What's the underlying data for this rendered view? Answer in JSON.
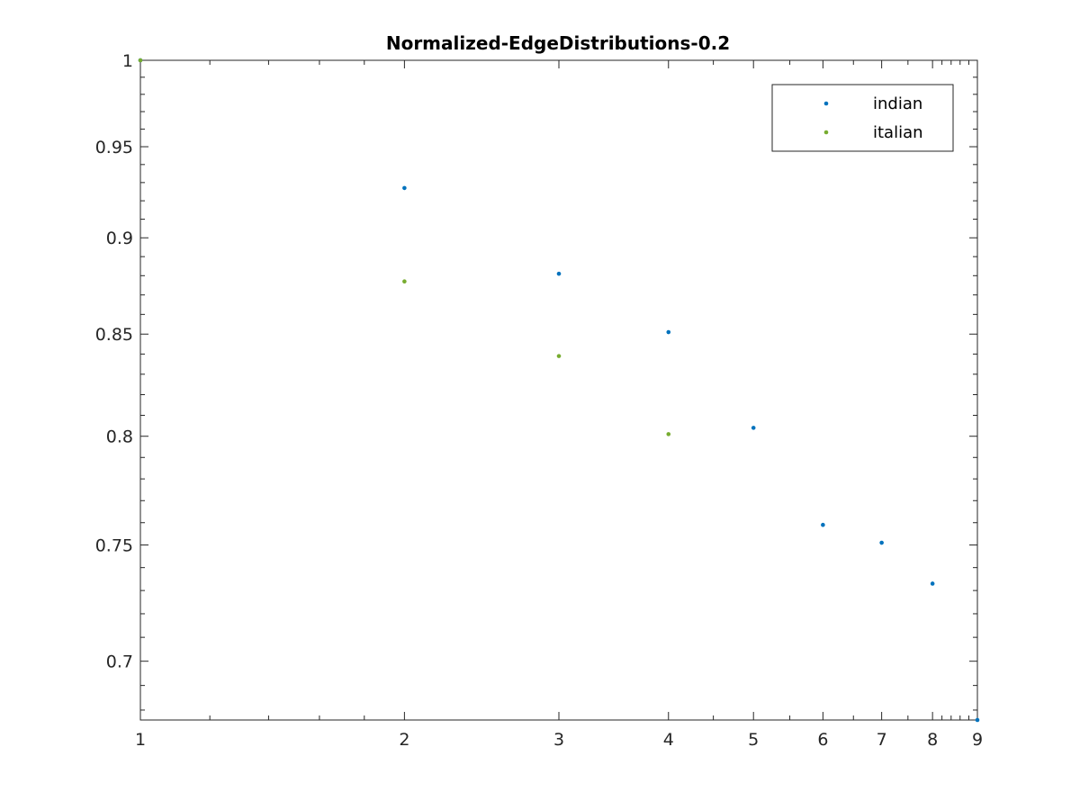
{
  "chart_data": {
    "type": "scatter",
    "title": "Normalized-EdgeDistributions-0.2",
    "xlabel": "",
    "ylabel": "",
    "xscale": "log",
    "yscale": "log",
    "xlim": [
      1,
      9
    ],
    "ylim": [
      0.676,
      1.0
    ],
    "xticks": [
      1,
      2,
      3,
      4,
      5,
      6,
      7,
      8,
      9
    ],
    "yticks": [
      0.7,
      0.75,
      0.8,
      0.85,
      0.9,
      0.95,
      1
    ],
    "xtick_labels": [
      "1",
      "2",
      "3",
      "4",
      "5",
      "6",
      "7",
      "8",
      "9"
    ],
    "ytick_labels": [
      "0.7",
      "0.75",
      "0.8",
      "0.85",
      "0.9",
      "0.95",
      "1"
    ],
    "grid": false,
    "legend_position": "top-right",
    "series": [
      {
        "name": "indian",
        "color": "#0072BD",
        "x": [
          1,
          2,
          3,
          4,
          5,
          6,
          7,
          8,
          9
        ],
        "y": [
          1.0,
          0.927,
          0.881,
          0.851,
          0.804,
          0.759,
          0.751,
          0.733,
          0.676
        ]
      },
      {
        "name": "italian",
        "color": "#77AC30",
        "x": [
          1,
          2,
          3,
          4
        ],
        "y": [
          1.0,
          0.877,
          0.839,
          0.801
        ]
      }
    ]
  }
}
